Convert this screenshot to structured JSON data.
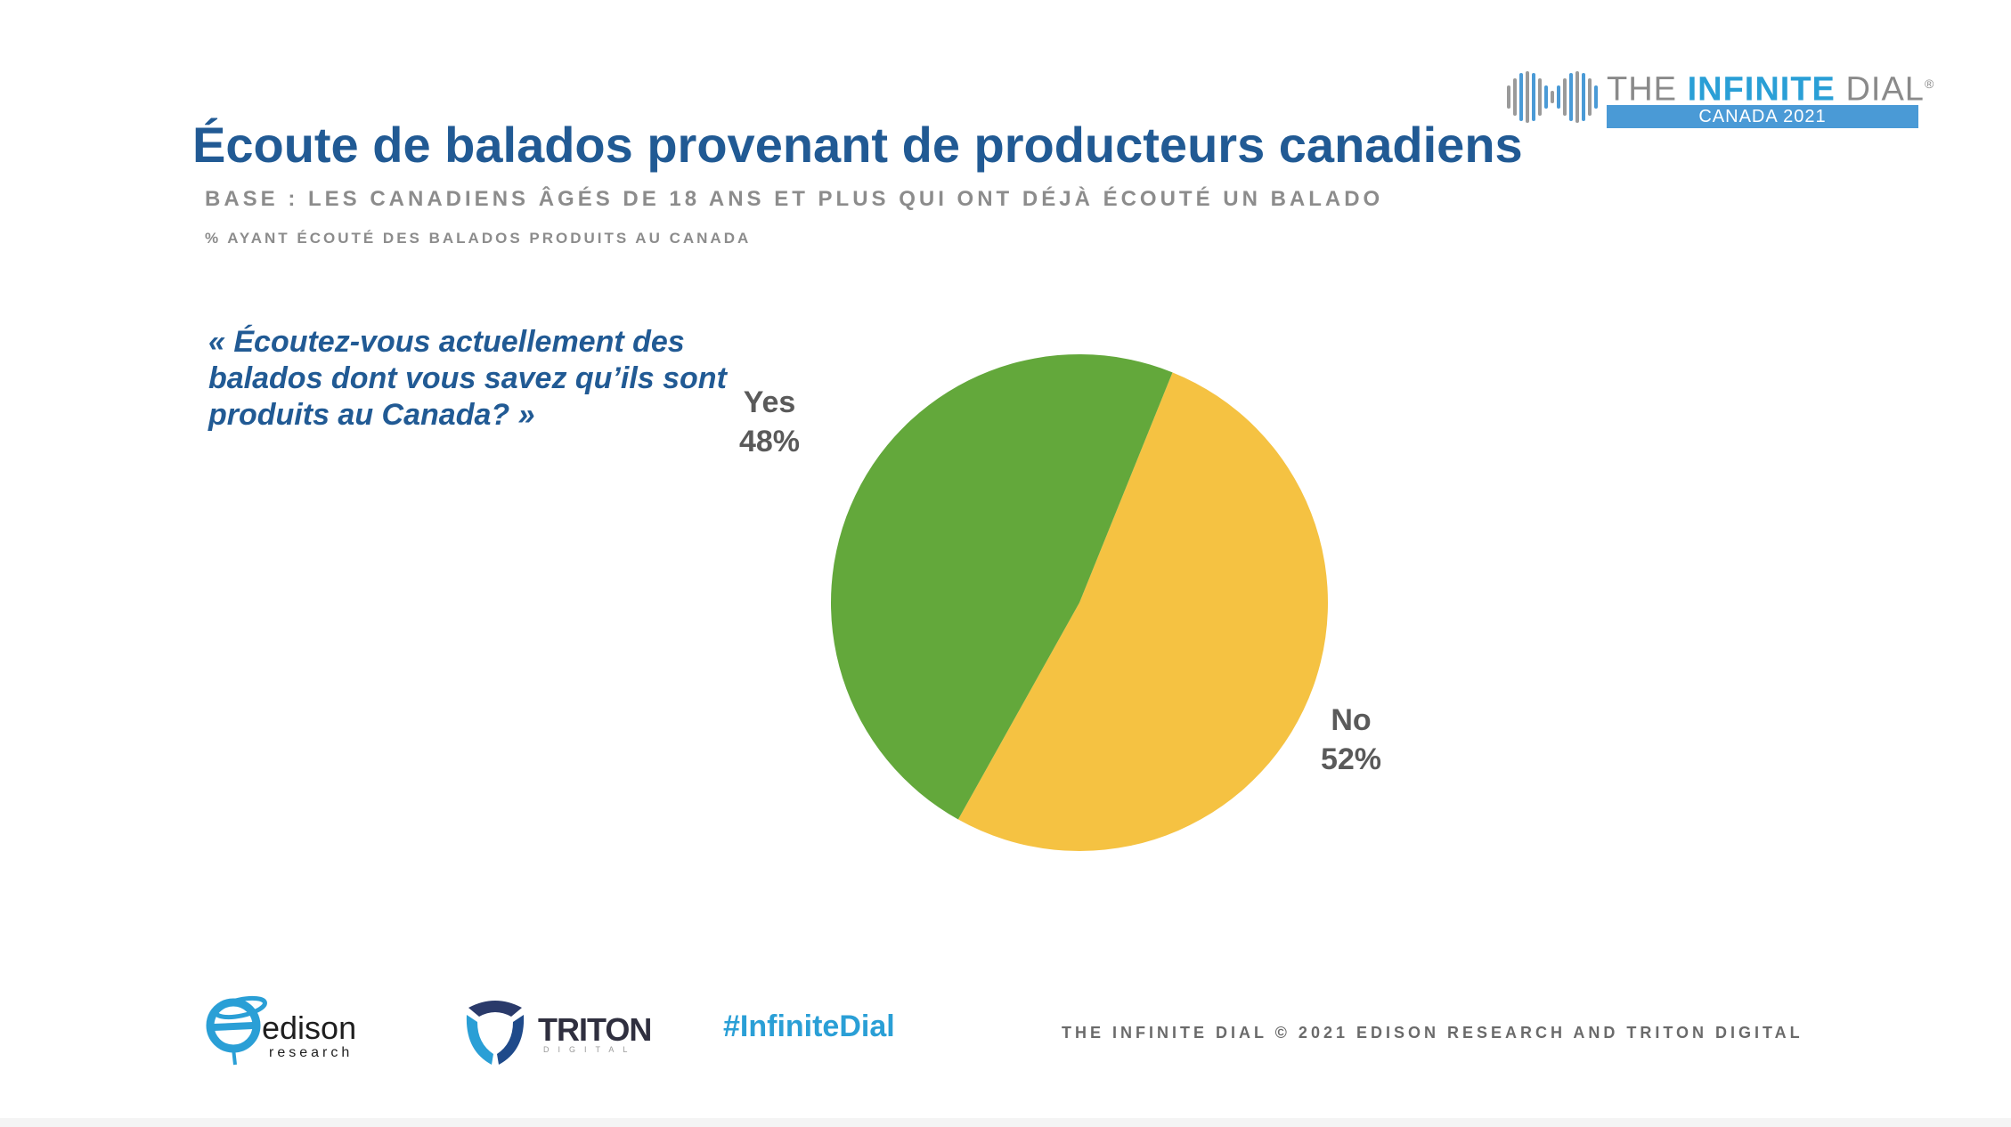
{
  "header": {
    "brand_prefix": "THE ",
    "brand_accent": "INFINITE",
    "brand_suffix": " DIAL",
    "brand_registered": "®",
    "brand_subtitle": "CANADA 2021",
    "title": "Écoute de balados provenant de producteurs canadiens",
    "base": "BASE : LES CANADIENS ÂGÉS DE 18 ANS ET PLUS QUI ONT DÉJÀ ÉCOUTÉ UN BALADO",
    "measure": "% AYANT ÉCOUTÉ DES BALADOS PRODUITS AU CANADA"
  },
  "question": "« Écoutez-vous actuellement des balados dont vous savez qu’ils sont produits au Canada? »",
  "chart_data": {
    "type": "pie",
    "title": "Écoute de balados provenant de producteurs canadiens",
    "slices": [
      {
        "label": "Yes",
        "value": 48,
        "value_label": "48%",
        "color": "#63a83b"
      },
      {
        "label": "No",
        "value": 52,
        "value_label": "52%",
        "color": "#f5c242"
      }
    ]
  },
  "footer": {
    "edison_name": "edison",
    "edison_sub": "research",
    "triton_name": "TRITON",
    "triton_sub": "DIGITAL",
    "hashtag": "#InfiniteDial",
    "copyright": "THE INFINITE DIAL   © 2021 EDISON RESEARCH AND TRITON DIGITAL"
  },
  "colors": {
    "title_blue": "#215a94",
    "accent_blue": "#2a9fd6",
    "grey_text": "#8c8c8c"
  }
}
